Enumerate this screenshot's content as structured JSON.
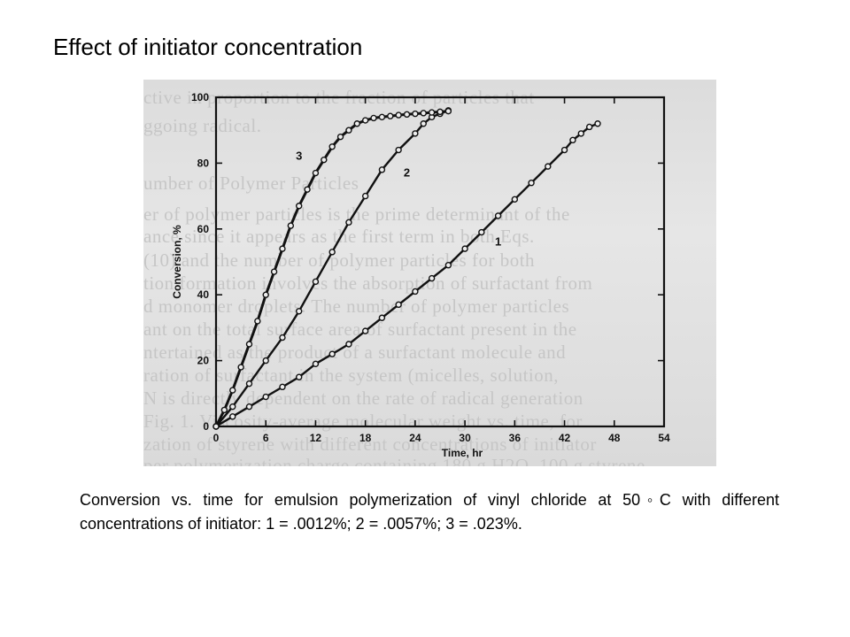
{
  "slide": {
    "title": "Effect of initiator concentration",
    "caption": "Conversion vs. time for emulsion polymerization of vinyl chloride at 50◦C with different concentrations of initiator: 1 = .0012%; 2 = .0057%; 3 = .023%."
  },
  "colors": {
    "background": "#ffffff",
    "scan_background": "#e0e0e0",
    "ink": "#111111"
  },
  "chart_data": {
    "type": "line",
    "title": "",
    "xlabel": "Time, hr",
    "ylabel": "Conversion, %",
    "xlim": [
      0,
      54
    ],
    "ylim": [
      0,
      100
    ],
    "xticks": [
      0,
      6,
      12,
      18,
      24,
      30,
      36,
      42,
      48,
      54
    ],
    "yticks": [
      0,
      20,
      40,
      60,
      80,
      100
    ],
    "grid": false,
    "legend": "none (curves labeled inline)",
    "series": [
      {
        "name": "1",
        "x": [
          0,
          2,
          4,
          6,
          8,
          10,
          12,
          14,
          16,
          18,
          20,
          22,
          24,
          26,
          28,
          30,
          32,
          34,
          36,
          38,
          40,
          42,
          43,
          44,
          45,
          46
        ],
        "y": [
          0,
          3,
          6,
          9,
          12,
          15,
          19,
          22,
          25,
          29,
          33,
          37,
          41,
          45,
          49,
          54,
          59,
          64,
          69,
          74,
          79,
          84,
          87,
          89,
          91,
          92
        ]
      },
      {
        "name": "2",
        "x": [
          0,
          2,
          4,
          6,
          8,
          10,
          12,
          14,
          16,
          18,
          20,
          22,
          24,
          25,
          26,
          27,
          28
        ],
        "y": [
          0,
          6,
          13,
          20,
          27,
          35,
          44,
          53,
          62,
          70,
          78,
          84,
          89,
          92,
          94,
          95,
          96
        ]
      },
      {
        "name": "3",
        "x": [
          0,
          1,
          2,
          3,
          4,
          5,
          6,
          7,
          8,
          9,
          10,
          11,
          12,
          13,
          14,
          15,
          16,
          17,
          18,
          19,
          20,
          21,
          22,
          23,
          24,
          25,
          26,
          27,
          28
        ],
        "y": [
          0,
          5,
          11,
          18,
          25,
          32,
          40,
          47,
          54,
          61,
          67,
          72,
          77,
          81,
          85,
          88,
          90,
          92,
          93,
          93.7,
          94,
          94.3,
          94.6,
          94.8,
          95,
          95.2,
          95.4,
          95.6,
          95.8
        ]
      }
    ]
  }
}
